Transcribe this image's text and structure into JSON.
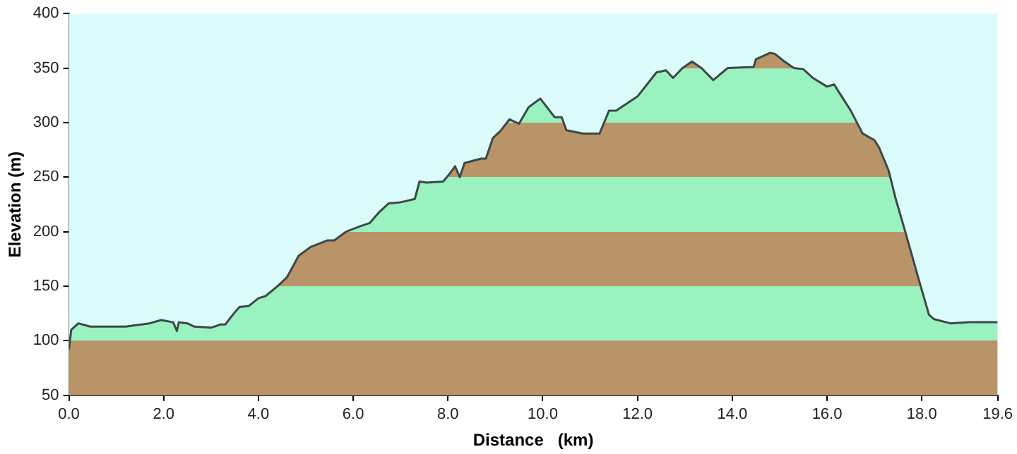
{
  "chart_data": {
    "type": "area",
    "xlabel": "Distance   (km)",
    "ylabel": "Elevation (m)",
    "x": [
      0,
      0.05,
      0.2,
      0.45,
      1.2,
      1.7,
      1.95,
      2.2,
      2.28,
      2.32,
      2.5,
      2.65,
      3.0,
      3.2,
      3.3,
      3.5,
      3.6,
      3.8,
      4.0,
      4.15,
      4.4,
      4.6,
      4.85,
      5.1,
      5.45,
      5.6,
      5.85,
      6.15,
      6.35,
      6.55,
      6.75,
      7.0,
      7.1,
      7.3,
      7.4,
      7.55,
      7.9,
      8.05,
      8.15,
      8.25,
      8.35,
      8.7,
      8.8,
      8.95,
      9.1,
      9.3,
      9.5,
      9.7,
      9.95,
      10.25,
      10.4,
      10.5,
      10.85,
      11.2,
      11.4,
      11.55,
      12.0,
      12.4,
      12.6,
      12.75,
      12.95,
      13.15,
      13.35,
      13.6,
      13.9,
      14.45,
      14.5,
      14.8,
      14.9,
      15.1,
      15.3,
      15.5,
      15.7,
      16.0,
      16.15,
      16.25,
      16.5,
      16.75,
      17.0,
      17.1,
      17.3,
      17.45,
      17.65,
      17.95,
      18.15,
      18.25,
      18.6,
      19.0,
      19.6
    ],
    "series": [
      {
        "color": "#3c4848",
        "values": [
          92,
          110,
          116,
          113,
          113,
          116,
          119,
          117,
          109,
          117,
          116,
          113,
          112,
          115,
          115,
          126,
          131,
          132,
          139,
          141,
          150,
          158,
          178,
          186,
          192,
          192,
          200,
          205,
          208,
          218,
          226,
          227,
          228,
          230,
          246,
          245,
          246,
          254,
          260,
          250,
          263,
          267,
          267,
          286,
          292,
          303,
          299,
          314,
          322,
          305,
          305,
          293,
          290,
          290,
          311,
          311,
          324,
          346,
          348,
          341,
          350,
          356,
          350,
          339,
          350,
          351,
          358,
          364,
          363,
          356,
          350,
          349,
          341,
          333,
          335,
          328,
          311,
          290,
          284,
          277,
          256,
          230,
          200,
          154,
          124,
          120,
          116,
          117,
          117
        ]
      }
    ],
    "xlim": [
      0,
      19.6
    ],
    "xticks": [
      {
        "value": 0,
        "label": "0.0"
      },
      {
        "value": 2,
        "label": "2.0"
      },
      {
        "value": 4,
        "label": "4.0"
      },
      {
        "value": 6,
        "label": "6.0"
      },
      {
        "value": 8,
        "label": "8.0"
      },
      {
        "value": 10,
        "label": "10.0"
      },
      {
        "value": 12,
        "label": "12.0"
      },
      {
        "value": 14,
        "label": "14.0"
      },
      {
        "value": 16,
        "label": "16.0"
      },
      {
        "value": 18,
        "label": "18.0"
      },
      {
        "value": 19.6,
        "label": "19.6"
      }
    ],
    "ylim": [
      50,
      400
    ],
    "yticks": [
      50,
      100,
      150,
      200,
      250,
      300,
      350,
      400
    ],
    "grid": false,
    "legend": false
  }
}
